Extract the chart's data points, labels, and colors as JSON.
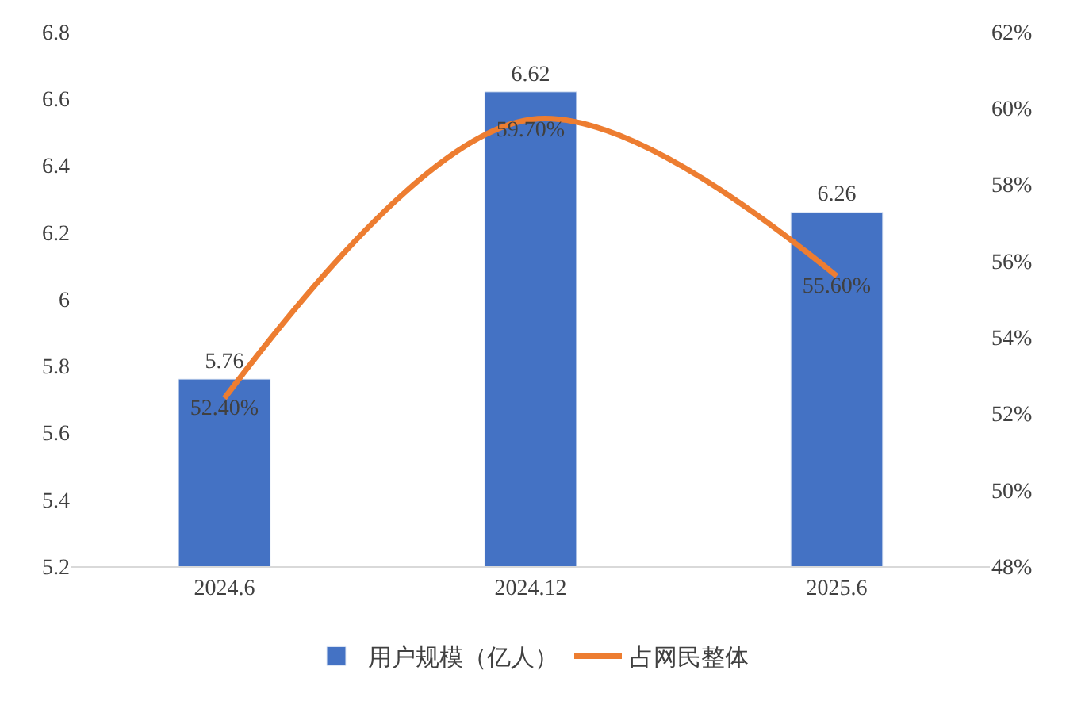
{
  "chart_data": {
    "type": "bar",
    "categories": [
      "2024.6",
      "2024.12",
      "2025.6"
    ],
    "series": [
      {
        "name": "用户规模（亿人）",
        "color": "#4472c4",
        "values": [
          5.76,
          6.62,
          6.26
        ],
        "value_labels": [
          "5.76",
          "6.62",
          "6.26"
        ]
      },
      {
        "name": "占网民整体",
        "type": "line",
        "axis": "y2",
        "color": "#ed7d31",
        "values": [
          52.4,
          59.7,
          55.6
        ],
        "value_labels": [
          "52.40%",
          "59.70%",
          "55.60%"
        ]
      }
    ],
    "ylim": [
      5.2,
      6.8
    ],
    "yticks": [
      5.2,
      5.4,
      5.6,
      5.8,
      6,
      6.2,
      6.4,
      6.6,
      6.8
    ],
    "y2lim": [
      48,
      62
    ],
    "y2ticks": [
      {
        "value": 48,
        "label": "48%"
      },
      {
        "value": 50,
        "label": "50%"
      },
      {
        "value": 52,
        "label": "52%"
      },
      {
        "value": 54,
        "label": "54%"
      },
      {
        "value": 56,
        "label": "56%"
      },
      {
        "value": 58,
        "label": "58%"
      },
      {
        "value": 60,
        "label": "60%"
      },
      {
        "value": 62,
        "label": "62%"
      }
    ],
    "legend": "bottom",
    "marker": "none",
    "line_style": "solid"
  }
}
